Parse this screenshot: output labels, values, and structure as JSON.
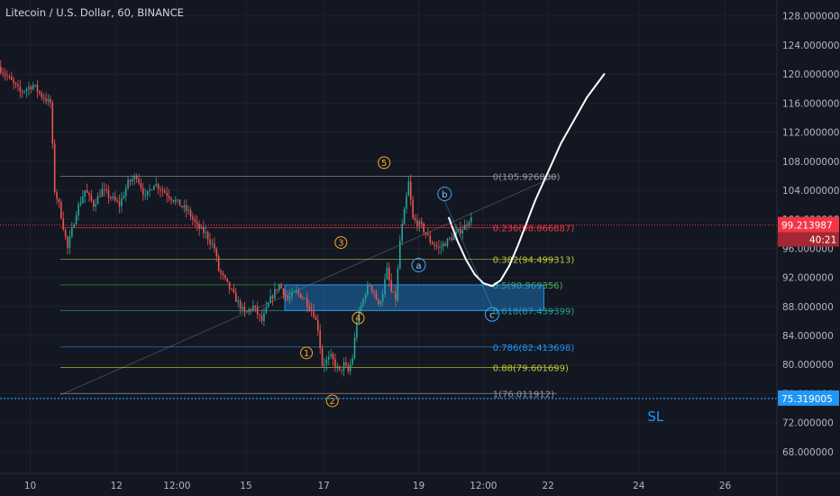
{
  "chart_data": {
    "type": "candlestick",
    "title": "Litecoin / U.S. Dollar, 60, BINANCE",
    "exchange": "BINANCE",
    "interval": "60",
    "y_axis": {
      "ylim": [
        65.0,
        130.2
      ],
      "ticks": [
        68,
        72,
        76,
        80,
        84,
        88,
        92,
        96,
        100,
        104,
        108,
        112,
        116,
        120,
        124,
        128
      ],
      "tick_labels": [
        "68.000000",
        "72.000000",
        "76.000000",
        "80.000000",
        "84.000000",
        "88.000000",
        "92.000000",
        "96.000000",
        "100.000000",
        "104.000000",
        "108.000000",
        "112.000000",
        "116.000000",
        "120.000000",
        "124.000000",
        "128.000000"
      ],
      "side": "right"
    },
    "x_axis": {
      "xlim": [
        0,
        180
      ],
      "ticks": [
        {
          "pos": 7,
          "label": "10"
        },
        {
          "pos": 27,
          "label": "12"
        },
        {
          "pos": 41,
          "label": "12:00"
        },
        {
          "pos": 57,
          "label": "15"
        },
        {
          "pos": 75,
          "label": "17"
        },
        {
          "pos": 97,
          "label": "19"
        },
        {
          "pos": 112,
          "label": "12:00"
        },
        {
          "pos": 127,
          "label": "22"
        },
        {
          "pos": 148,
          "label": "24"
        },
        {
          "pos": 168,
          "label": "26"
        }
      ]
    },
    "price_path": [
      [
        0,
        121
      ],
      [
        3,
        119
      ],
      [
        5,
        117.5
      ],
      [
        8,
        118.5
      ],
      [
        10,
        117
      ],
      [
        12,
        116
      ],
      [
        13,
        104
      ],
      [
        14,
        102
      ],
      [
        15,
        99
      ],
      [
        16,
        96
      ],
      [
        18,
        101
      ],
      [
        20,
        104
      ],
      [
        22,
        102
      ],
      [
        24,
        104
      ],
      [
        26,
        103
      ],
      [
        28,
        102
      ],
      [
        30,
        105
      ],
      [
        32,
        106
      ],
      [
        34,
        103
      ],
      [
        36,
        105
      ],
      [
        38,
        104
      ],
      [
        40,
        103
      ],
      [
        42,
        102
      ],
      [
        44,
        101
      ],
      [
        46,
        99
      ],
      [
        48,
        98
      ],
      [
        50,
        96
      ],
      [
        51,
        93
      ],
      [
        53,
        91
      ],
      [
        55,
        89
      ],
      [
        57,
        87
      ],
      [
        59,
        88
      ],
      [
        61,
        86
      ],
      [
        63,
        89
      ],
      [
        65,
        91
      ],
      [
        67,
        89
      ],
      [
        69,
        90
      ],
      [
        71,
        89
      ],
      [
        72,
        88
      ],
      [
        73,
        87
      ],
      [
        74,
        85
      ],
      [
        75,
        80
      ],
      [
        77,
        81
      ],
      [
        79,
        79
      ],
      [
        80,
        80
      ],
      [
        81,
        79
      ],
      [
        82,
        81
      ],
      [
        83,
        86
      ],
      [
        84,
        88
      ],
      [
        85,
        90
      ],
      [
        86,
        91
      ],
      [
        87,
        90
      ],
      [
        88,
        88
      ],
      [
        89,
        90
      ],
      [
        90,
        93
      ],
      [
        91,
        90
      ],
      [
        92,
        89
      ],
      [
        93,
        97
      ],
      [
        94,
        101
      ],
      [
        95,
        105
      ],
      [
        96,
        100
      ],
      [
        98,
        99
      ],
      [
        100,
        97
      ],
      [
        102,
        96
      ],
      [
        104,
        97
      ],
      [
        106,
        98
      ],
      [
        108,
        99
      ],
      [
        109,
        100
      ]
    ],
    "fibonacci": [
      {
        "ratio": "0",
        "price": 105.9268,
        "label": "0(105.926800)",
        "color": "#9598a1"
      },
      {
        "ratio": "0.236",
        "price": 98.866887,
        "label": "0.236(98.866887)",
        "color": "#f23645"
      },
      {
        "ratio": "0.382",
        "price": 94.499313,
        "label": "0.382(94.499313)",
        "color": "#c0ca33"
      },
      {
        "ratio": "0.5",
        "price": 90.969356,
        "label": "0.5(90.969356)",
        "color": "#4caf50"
      },
      {
        "ratio": "0.618",
        "price": 87.439399,
        "label": "0.618(87.439399)",
        "color": "#26a69a"
      },
      {
        "ratio": "0.786",
        "price": 82.413698,
        "label": "0.786(82.413698)",
        "color": "#2196f3"
      },
      {
        "ratio": "0.88",
        "price": 79.601699,
        "label": "0.88(79.601699)",
        "color": "#c0ca33"
      },
      {
        "ratio": "1",
        "price": 76.011912,
        "label": "1(76.011912)",
        "color": "#9598a1"
      }
    ],
    "zone": {
      "price_top": 90.969356,
      "price_bottom": 87.439399,
      "x_start": 66,
      "x_end": 126,
      "color": "#2196f3"
    },
    "current_price": {
      "value": 99.213987,
      "label": "99.213987",
      "countdown": "40:21",
      "color": "#f23645"
    },
    "stop_loss": {
      "value": 75.319005,
      "label": "75.319005",
      "text": "SL",
      "color": "#2196f3"
    },
    "wave_labels_impulse": [
      {
        "text": "1",
        "x": 71,
        "y": 81.6
      },
      {
        "text": "2",
        "x": 77,
        "y": 75.0
      },
      {
        "text": "3",
        "x": 79,
        "y": 96.8
      },
      {
        "text": "4",
        "x": 83,
        "y": 86.4
      },
      {
        "text": "5",
        "x": 89,
        "y": 107.8
      }
    ],
    "wave_labels_correction": [
      {
        "text": "a",
        "x": 97,
        "y": 93.7
      },
      {
        "text": "b",
        "x": 103,
        "y": 103.5
      },
      {
        "text": "c",
        "x": 114,
        "y": 86.9
      }
    ],
    "projection_path": [
      [
        104,
        100.2
      ],
      [
        106,
        97.0
      ],
      [
        108,
        94.4
      ],
      [
        110,
        92.4
      ],
      [
        112,
        91.2
      ],
      [
        114,
        90.8
      ],
      [
        116,
        91.6
      ],
      [
        118,
        93.6
      ],
      [
        120,
        96.4
      ],
      [
        124,
        102.6
      ],
      [
        130,
        110.5
      ],
      [
        136,
        116.8
      ],
      [
        140,
        120.0
      ]
    ],
    "trend_line": [
      [
        14,
        75.8
      ],
      [
        129,
        106.0
      ]
    ]
  }
}
